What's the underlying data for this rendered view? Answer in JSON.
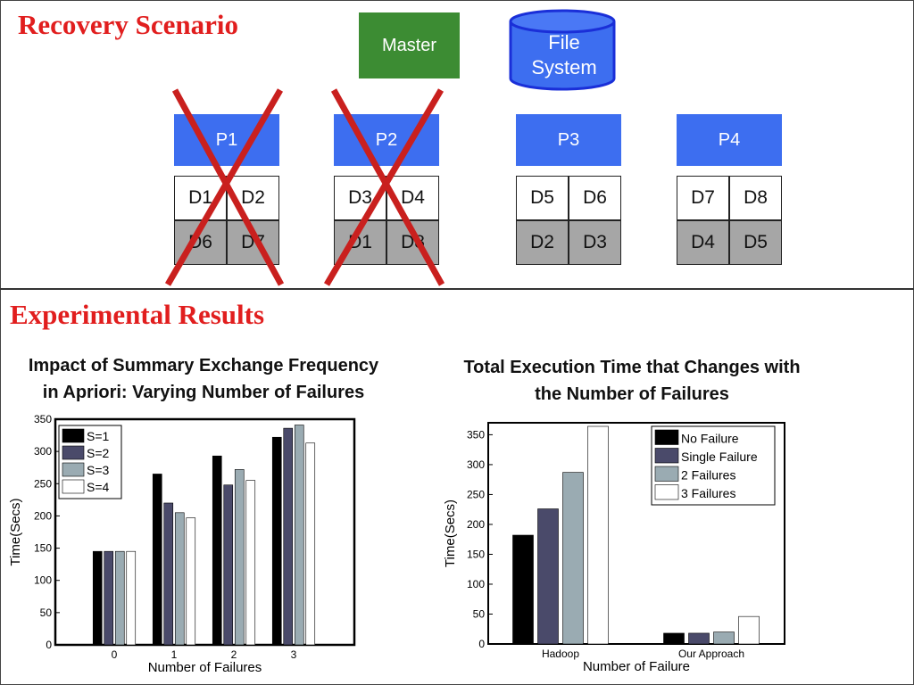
{
  "top_section": {
    "title": "Recovery Scenario",
    "master_label": "Master",
    "file_system_line1": "File",
    "file_system_line2": "System",
    "nodes": [
      {
        "label": "P1",
        "blocks_top": [
          "D1",
          "D2"
        ],
        "blocks_bottom": [
          "D6",
          "D7"
        ],
        "failed": true
      },
      {
        "label": "P2",
        "blocks_top": [
          "D3",
          "D4"
        ],
        "blocks_bottom": [
          "D1",
          "D8"
        ],
        "failed": true
      },
      {
        "label": "P3",
        "blocks_top": [
          "D5",
          "D6"
        ],
        "blocks_bottom": [
          "D2",
          "D3"
        ],
        "failed": false
      },
      {
        "label": "P4",
        "blocks_top": [
          "D7",
          "D8"
        ],
        "blocks_bottom": [
          "D4",
          "D5"
        ],
        "failed": false
      }
    ],
    "colors": {
      "master": "#3c8c33",
      "node": "#3d6ef0",
      "cross": "#c9201e",
      "replica": "#a6a6a6"
    }
  },
  "bottom_section": {
    "title": "Experimental Results"
  },
  "chart_data": [
    {
      "type": "bar",
      "title_line1": "Impact of Summary Exchange Frequency",
      "title_line2": "in Apriori: Varying Number of Failures",
      "xlabel": "Number of Failures",
      "ylabel": "Time(Secs)",
      "categories": [
        "0",
        "1",
        "2",
        "3"
      ],
      "ylim": [
        0,
        350
      ],
      "yticks": [
        0,
        50,
        100,
        150,
        200,
        250,
        300,
        350
      ],
      "legend_position": "top-left",
      "series": [
        {
          "name": "S=1",
          "color": "#000000",
          "values": [
            145,
            265,
            293,
            322
          ]
        },
        {
          "name": "S=2",
          "color": "#4a4a6a",
          "values": [
            145,
            220,
            248,
            336
          ]
        },
        {
          "name": "S=3",
          "color": "#9aabb2",
          "values": [
            145,
            205,
            272,
            341
          ]
        },
        {
          "name": "S=4",
          "color": "#ffffff",
          "values": [
            145,
            197,
            255,
            313
          ]
        }
      ]
    },
    {
      "type": "bar",
      "title_line1": "Total Execution Time that Changes with",
      "title_line2": "the Number of Failures",
      "xlabel": "Number of Failure",
      "ylabel": "Time(Secs)",
      "categories": [
        "Hadoop",
        "Our Approach"
      ],
      "ylim": [
        0,
        370
      ],
      "yticks": [
        0,
        50,
        100,
        150,
        200,
        250,
        300,
        350
      ],
      "legend_position": "top-right",
      "series": [
        {
          "name": "No Failure",
          "color": "#000000",
          "values": [
            182,
            18
          ]
        },
        {
          "name": "Single Failure",
          "color": "#4a4a6a",
          "values": [
            226,
            18
          ]
        },
        {
          "name": "2 Failures",
          "color": "#9aabb2",
          "values": [
            287,
            20
          ]
        },
        {
          "name": "3 Failures",
          "color": "#ffffff",
          "values": [
            364,
            46
          ]
        }
      ]
    }
  ]
}
